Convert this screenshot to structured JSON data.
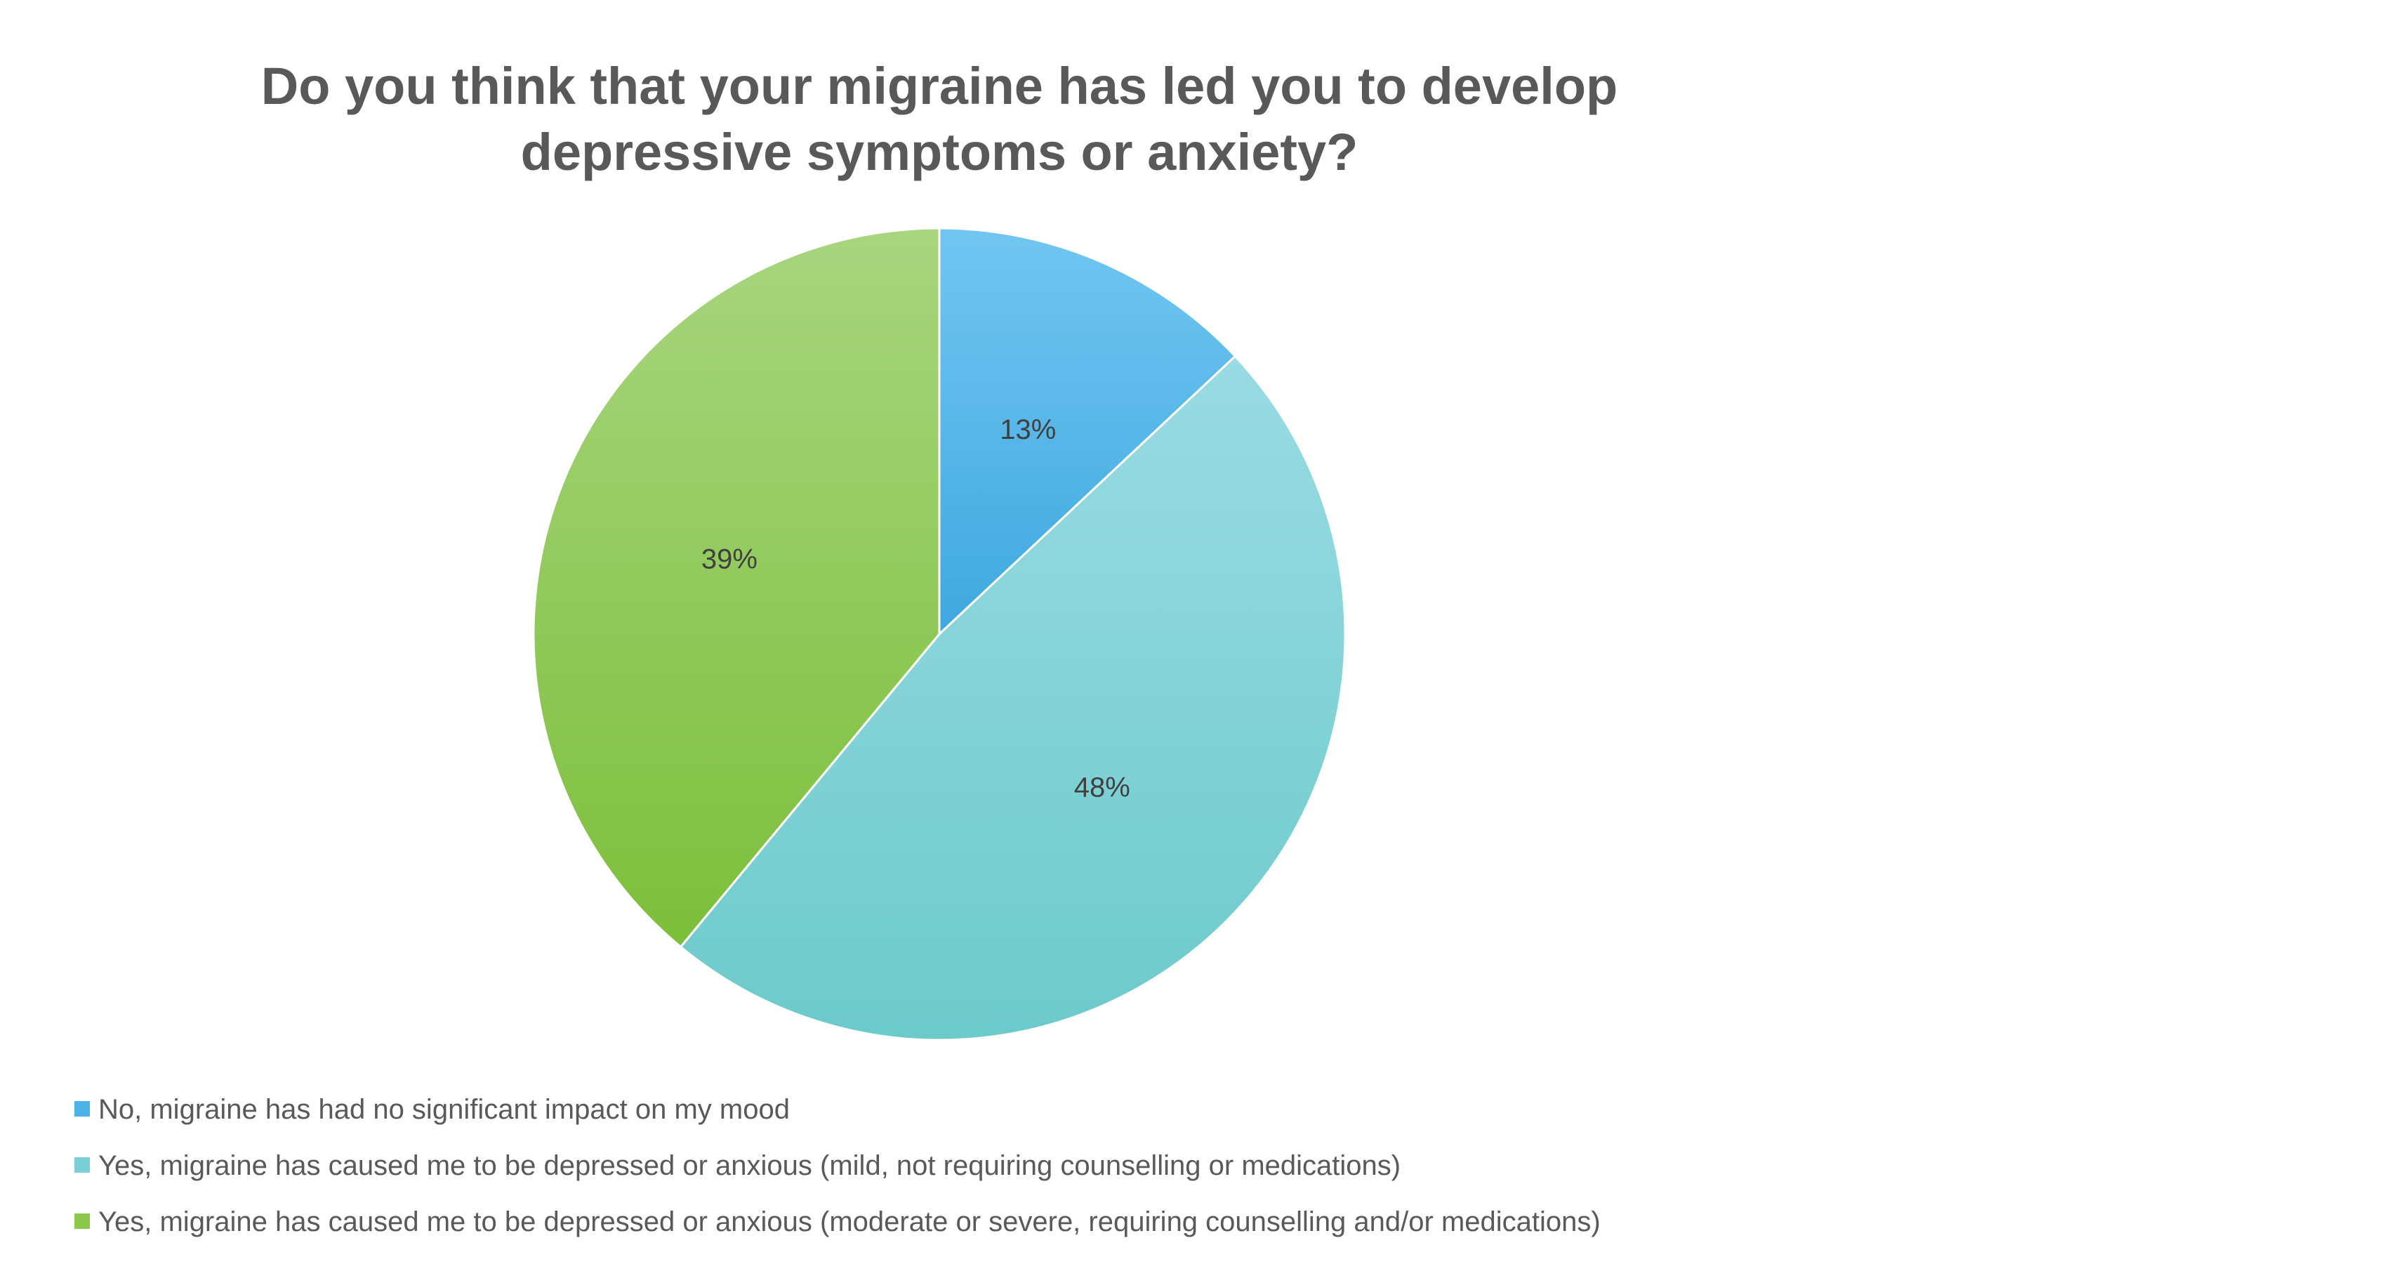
{
  "chart_data": {
    "type": "pie",
    "title": "Do you think that your migraine has led you to develop depressive symptoms or anxiety?",
    "title_lines": [
      "Do you think that your migraine has led you to develop",
      "depressive symptoms or anxiety?"
    ],
    "categories": [
      "No, migraine has had no significant impact on my mood",
      "Yes, migraine has caused me to be depressed or anxious (mild, not requiring counselling or medications)",
      "Yes, migraine has caused me to be depressed or anxious (moderate or severe, requiring counselling and/or medications)"
    ],
    "values": [
      13,
      48,
      39
    ],
    "data_labels": [
      "13%",
      "48%",
      "39%"
    ],
    "colors": [
      "#4BB3E8",
      "#7ACFD6",
      "#8CC84B"
    ],
    "legend_position": "bottom-left"
  }
}
